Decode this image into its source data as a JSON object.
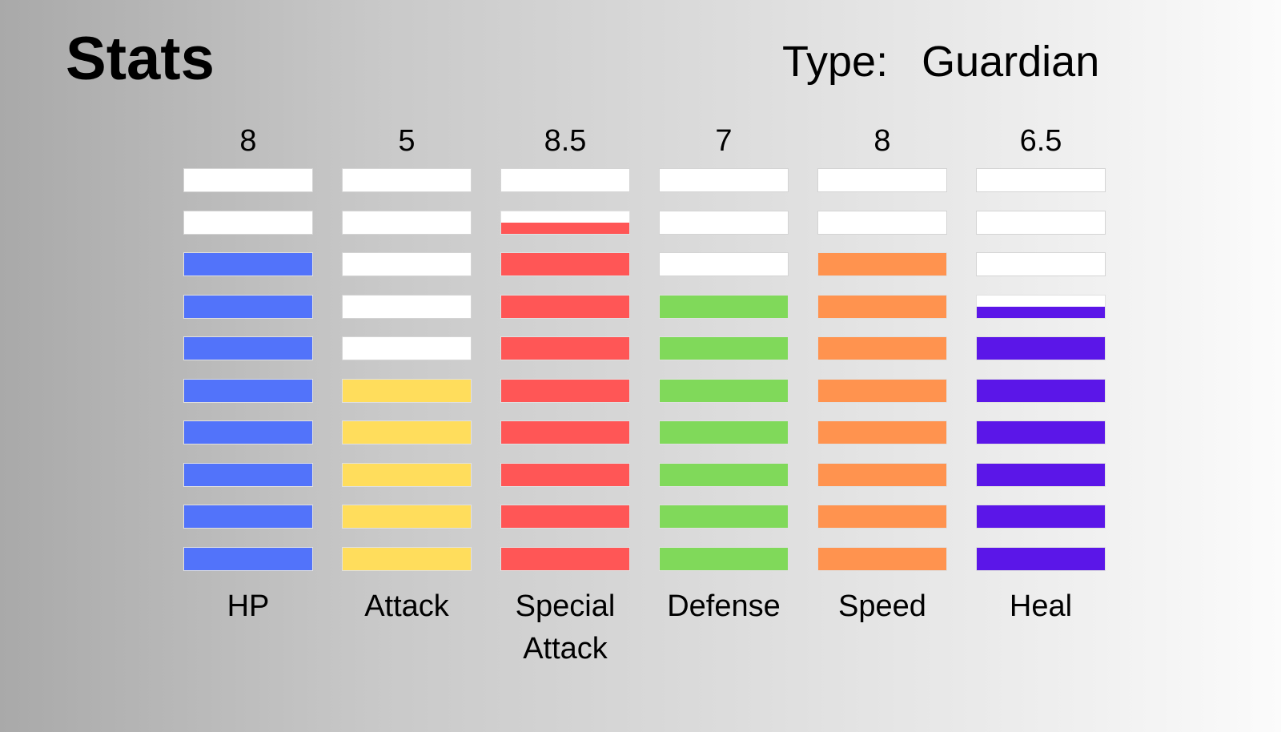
{
  "page": {
    "title": "Stats",
    "type_label": "Type:",
    "type_value": "Guardian"
  },
  "chart_data": {
    "type": "bar",
    "segments_per_bar": 10,
    "ylim": [
      0,
      10
    ],
    "categories": [
      "HP",
      "Attack",
      "Special\nAttack",
      "Defense",
      "Speed",
      "Heal"
    ],
    "values": [
      8,
      5,
      8.5,
      7,
      8,
      6.5
    ],
    "value_labels": [
      "8",
      "5",
      "8.5",
      "7",
      "8",
      "6.5"
    ],
    "colors": [
      "#5273fa",
      "#ffdd5c",
      "#ff5656",
      "#80d95a",
      "#ff934f",
      "#5b16e8"
    ],
    "empty_color": "#ffffff"
  }
}
